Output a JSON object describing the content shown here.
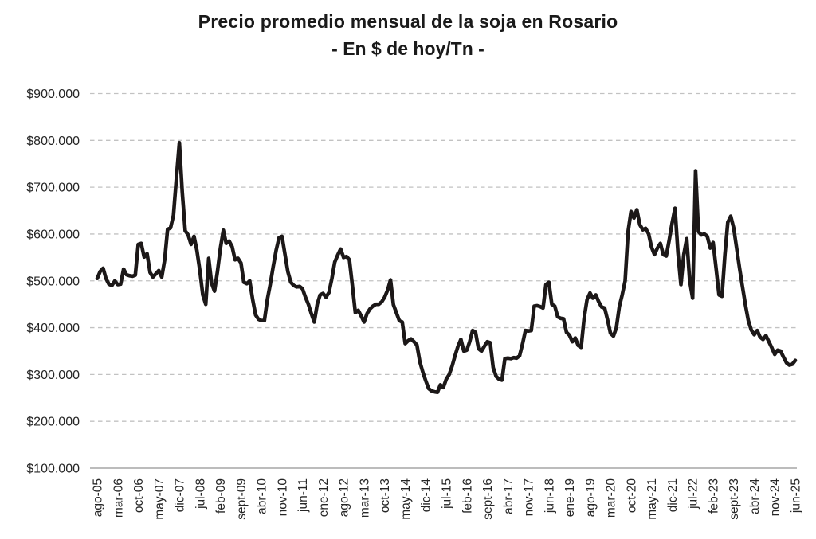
{
  "page": {
    "background_color": "#ffffff",
    "accent_line_color": "#1c1818",
    "gridline_color": "#c2c2c2",
    "axis_line_color": "#a6a6a6"
  },
  "chart_data": {
    "type": "line",
    "title": "Precio promedio mensual de la soja en Rosario",
    "subtitle": "- En $ de hoy/Tn -",
    "xlabel": "",
    "ylabel": "",
    "unit": "$ de hoy / Tn",
    "frequency": "monthly",
    "x_start": "ago-05",
    "x_end": "jun-25",
    "n_points": 239,
    "ylim": [
      100000,
      900000
    ],
    "grid": "horizontal-dashed",
    "legend_position": "none",
    "y_tick_labels": [
      "$900.000",
      "$800.000",
      "$700.000",
      "$600.000",
      "$500.000",
      "$400.000",
      "$300.000",
      "$200.000",
      "$100.000"
    ],
    "y_tick_values": [
      900000,
      800000,
      700000,
      600000,
      500000,
      400000,
      300000,
      200000,
      100000
    ],
    "x_tick_every_n_months": 7,
    "x_tick_labels": [
      "ago-05",
      "mar-06",
      "oct-06",
      "may-07",
      "dic-07",
      "jul-08",
      "feb-09",
      "sept-09",
      "abr-10",
      "nov-10",
      "jun-11",
      "ene-12",
      "ago-12",
      "mar-13",
      "oct-13",
      "may-14",
      "dic-14",
      "jul-15",
      "feb-16",
      "sept-16",
      "abr-17",
      "nov-17",
      "jun-18",
      "ene-19",
      "ago-19",
      "mar-20",
      "oct-20",
      "may-21",
      "dic-21",
      "jul-22",
      "feb-23",
      "sept-23",
      "abr-24",
      "nov-24",
      "jun-25"
    ],
    "series": [
      {
        "name": "Precio promedio mensual de la soja en Rosario ($ de hoy/Tn)",
        "color": "#1c1818",
        "values": [
          505000,
          520000,
          527000,
          505000,
          493000,
          490000,
          500000,
          492000,
          493000,
          525000,
          513000,
          511000,
          510000,
          512000,
          578000,
          580000,
          551000,
          558000,
          518000,
          508000,
          515000,
          522000,
          508000,
          545000,
          610000,
          613000,
          640000,
          720000,
          795000,
          690000,
          607000,
          598000,
          578000,
          595000,
          565000,
          522000,
          470000,
          450000,
          548000,
          495000,
          478000,
          520000,
          570000,
          608000,
          580000,
          585000,
          573000,
          545000,
          548000,
          538000,
          497000,
          494000,
          500000,
          460000,
          427000,
          418000,
          415000,
          415000,
          460000,
          493000,
          530000,
          565000,
          592000,
          595000,
          557000,
          520000,
          497000,
          490000,
          487000,
          488000,
          483000,
          465000,
          450000,
          430000,
          412000,
          450000,
          470000,
          473000,
          465000,
          475000,
          505000,
          540000,
          555000,
          568000,
          550000,
          552000,
          545000,
          490000,
          432000,
          437000,
          425000,
          412000,
          430000,
          440000,
          446000,
          450000,
          450000,
          455000,
          465000,
          480000,
          502000,
          449000,
          432000,
          415000,
          412000,
          366000,
          372000,
          376000,
          370000,
          363000,
          327000,
          305000,
          287000,
          270000,
          265000,
          263000,
          262000,
          278000,
          272000,
          290000,
          300000,
          318000,
          340000,
          360000,
          375000,
          350000,
          352000,
          370000,
          394000,
          390000,
          355000,
          350000,
          360000,
          370000,
          368000,
          315000,
          296000,
          290000,
          288000,
          334000,
          335000,
          334000,
          336000,
          335000,
          340000,
          365000,
          394000,
          393000,
          394000,
          446000,
          447000,
          445000,
          442000,
          492000,
          497000,
          450000,
          446000,
          423000,
          420000,
          419000,
          390000,
          384000,
          370000,
          378000,
          362000,
          358000,
          420000,
          460000,
          474000,
          463000,
          470000,
          455000,
          444000,
          442000,
          417000,
          388000,
          382000,
          400000,
          445000,
          470000,
          500000,
          605000,
          648000,
          634000,
          652000,
          620000,
          609000,
          612000,
          600000,
          572000,
          556000,
          570000,
          580000,
          556000,
          553000,
          586000,
          623000,
          655000,
          560000,
          492000,
          556000,
          590000,
          500000,
          463000,
          735000,
          605000,
          598000,
          600000,
          595000,
          570000,
          582000,
          527000,
          470000,
          467000,
          556000,
          625000,
          638000,
          613000,
          570000,
          527000,
          488000,
          449000,
          415000,
          395000,
          385000,
          394000,
          380000,
          375000,
          383000,
          370000,
          357000,
          343000,
          352000,
          350000,
          337000,
          325000,
          320000,
          322000,
          330000
        ]
      }
    ]
  }
}
